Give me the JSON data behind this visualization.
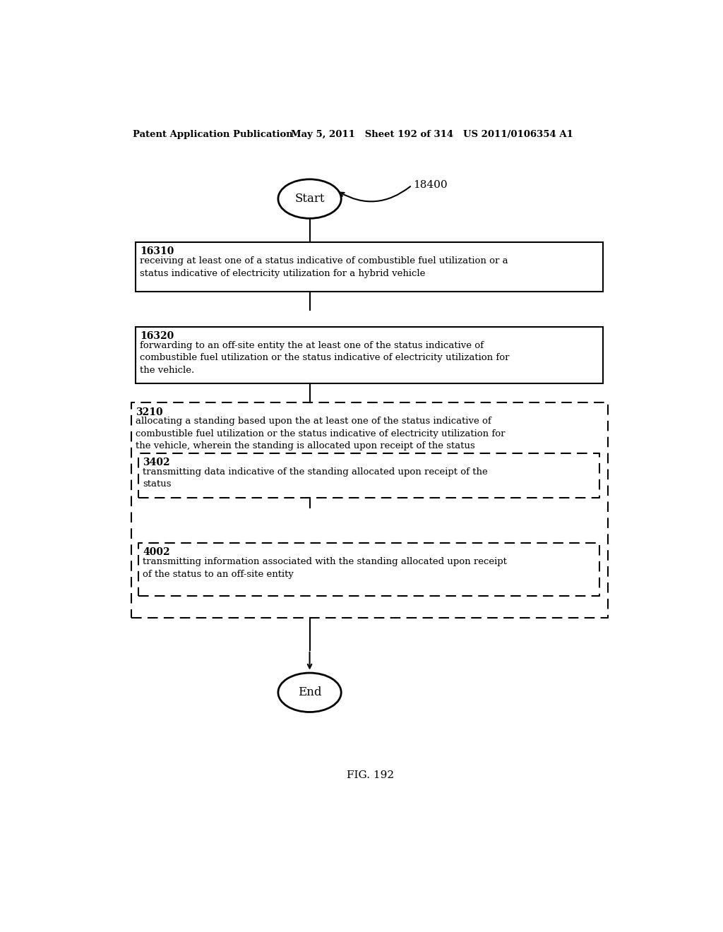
{
  "header_left": "Patent Application Publication",
  "header_mid": "May 5, 2011   Sheet 192 of 314   US 2011/0106354 A1",
  "fig_label": "FIG. 192",
  "ref_number": "18400",
  "start_label": "Start",
  "end_label": "End",
  "box1_id": "16310",
  "box1_text": "receiving at least one of a status indicative of combustible fuel utilization or a\nstatus indicative of electricity utilization for a hybrid vehicle",
  "box2_id": "16320",
  "box2_text": "forwarding to an off-site entity the at least one of the status indicative of\ncombustible fuel utilization or the status indicative of electricity utilization for\nthe vehicle.",
  "outer_box_id": "3210",
  "outer_box_text": "allocating a standing based upon the at least one of the status indicative of\ncombustible fuel utilization or the status indicative of electricity utilization for\nthe vehicle, wherein the standing is allocated upon receipt of the status",
  "inner_box1_id": "3402",
  "inner_box1_text": "transmitting data indicative of the standing allocated upon receipt of the\nstatus",
  "inner_box2_id": "4002",
  "inner_box2_text": "transmitting information associated with the standing allocated upon receipt\nof the status to an off-site entity",
  "bg_color": "#ffffff",
  "text_color": "#000000",
  "line_color": "#000000"
}
